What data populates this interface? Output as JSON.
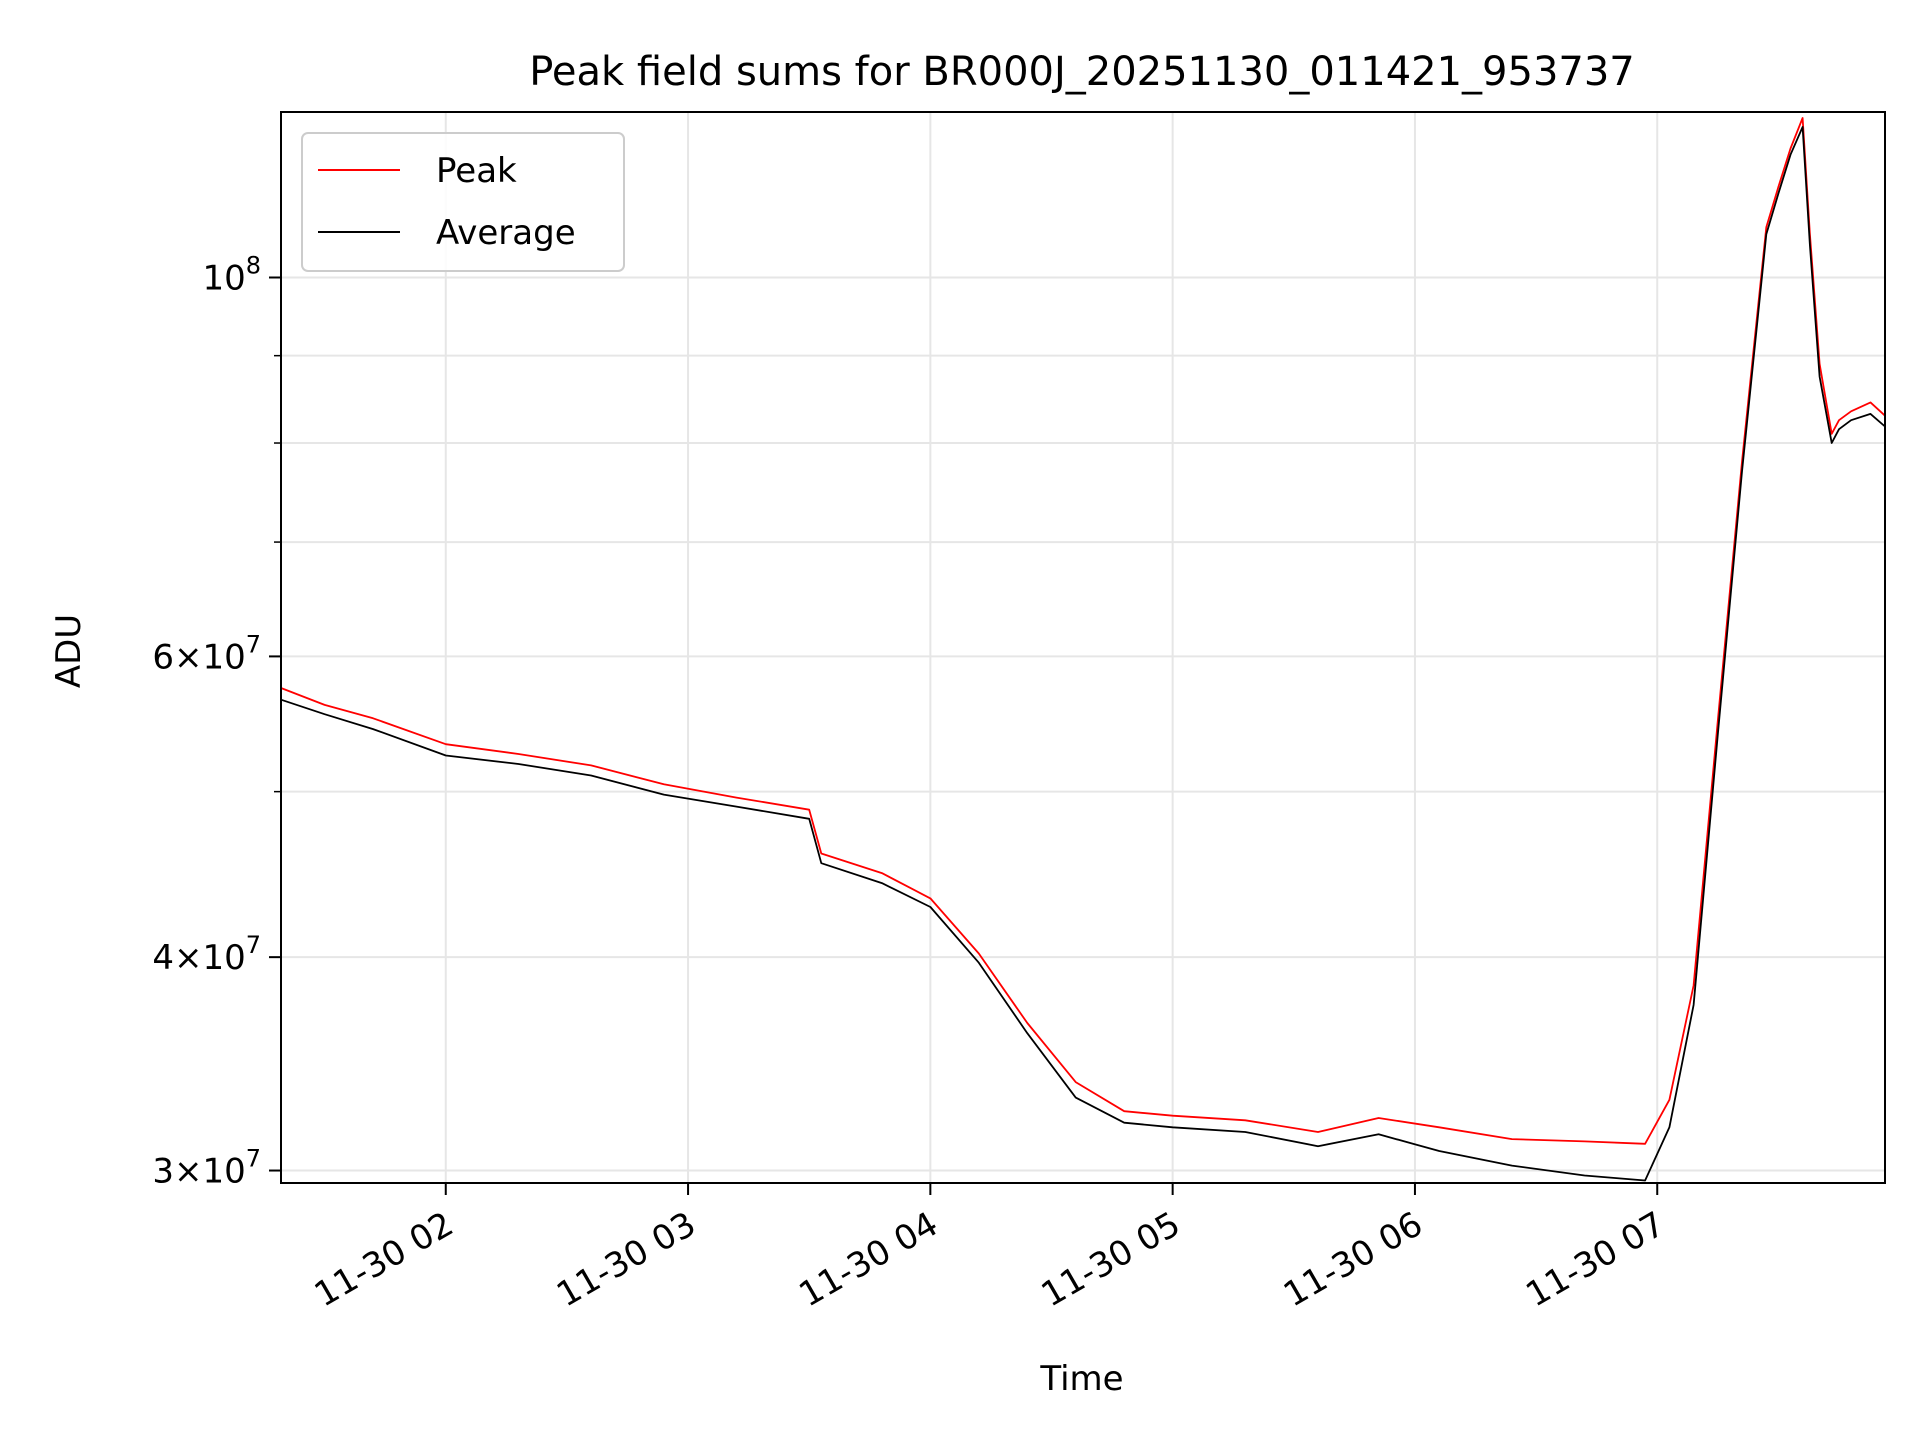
{
  "chart_data": {
    "type": "line",
    "title": "Peak field sums for BR000J_20251130_011421_953737",
    "xlabel": "Time",
    "ylabel": "ADU",
    "yscale": "log",
    "grid": true,
    "legend_position": "top-left",
    "x_unit": "hours since 2025-11-30 00:00",
    "xlim": [
      1.32,
      7.94
    ],
    "ylim": [
      29500000,
      125000000
    ],
    "x_ticks": [
      {
        "value": 2,
        "label": "11-30 02"
      },
      {
        "value": 3,
        "label": "11-30 03"
      },
      {
        "value": 4,
        "label": "11-30 04"
      },
      {
        "value": 5,
        "label": "11-30 05"
      },
      {
        "value": 6,
        "label": "11-30 06"
      },
      {
        "value": 7,
        "label": "11-30 07"
      }
    ],
    "y_ticks": [
      {
        "value": 30000000,
        "base": "3",
        "exponent": "7"
      },
      {
        "value": 40000000,
        "base": "4",
        "exponent": "7"
      },
      {
        "value": 60000000,
        "base": "6",
        "exponent": "7"
      },
      {
        "value": 100000000,
        "base": "10",
        "exponent": "8"
      }
    ],
    "y_minor_ticks": [
      50000000,
      70000000,
      80000000,
      90000000
    ],
    "times_operator": "×",
    "series": [
      {
        "name": "Peak",
        "color": "#ff0000",
        "x": [
          1.32,
          1.5,
          1.7,
          2.0,
          2.3,
          2.6,
          2.9,
          3.2,
          3.5,
          3.55,
          3.8,
          4.0,
          4.2,
          4.4,
          4.6,
          4.8,
          5.0,
          5.3,
          5.6,
          5.85,
          6.1,
          6.4,
          6.7,
          6.95,
          7.05,
          7.15,
          7.25,
          7.35,
          7.45,
          7.5,
          7.55,
          7.6,
          7.63,
          7.67,
          7.72,
          7.75,
          7.8,
          7.88,
          7.94
        ],
        "values": [
          57500000,
          56200000,
          55200000,
          53300000,
          52600000,
          51800000,
          50500000,
          49600000,
          48800000,
          46000000,
          44800000,
          43300000,
          40200000,
          36600000,
          33800000,
          32500000,
          32300000,
          32100000,
          31600000,
          32200000,
          31800000,
          31300000,
          31200000,
          31100000,
          33000000,
          38500000,
          55000000,
          78000000,
          107000000,
          113000000,
          119000000,
          124000000,
          106000000,
          89000000,
          81000000,
          82500000,
          83500000,
          84500000,
          83000000
        ]
      },
      {
        "name": "Average",
        "color": "#000000",
        "x": [
          1.32,
          1.5,
          1.7,
          2.0,
          2.3,
          2.6,
          2.9,
          3.2,
          3.5,
          3.55,
          3.8,
          4.0,
          4.2,
          4.4,
          4.6,
          4.8,
          5.0,
          5.3,
          5.6,
          5.85,
          6.1,
          6.4,
          6.7,
          6.95,
          7.05,
          7.15,
          7.25,
          7.35,
          7.45,
          7.5,
          7.55,
          7.6,
          7.63,
          7.67,
          7.72,
          7.75,
          7.8,
          7.88,
          7.94
        ],
        "values": [
          56600000,
          55500000,
          54400000,
          52500000,
          51900000,
          51100000,
          49800000,
          49000000,
          48200000,
          45400000,
          44200000,
          42800000,
          39700000,
          36100000,
          33100000,
          32000000,
          31800000,
          31600000,
          31000000,
          31500000,
          30800000,
          30200000,
          29800000,
          29600000,
          31800000,
          37500000,
          54000000,
          77000000,
          106000000,
          112000000,
          118000000,
          122500000,
          104500000,
          87500000,
          80000000,
          81500000,
          82500000,
          83200000,
          81800000
        ]
      }
    ]
  }
}
